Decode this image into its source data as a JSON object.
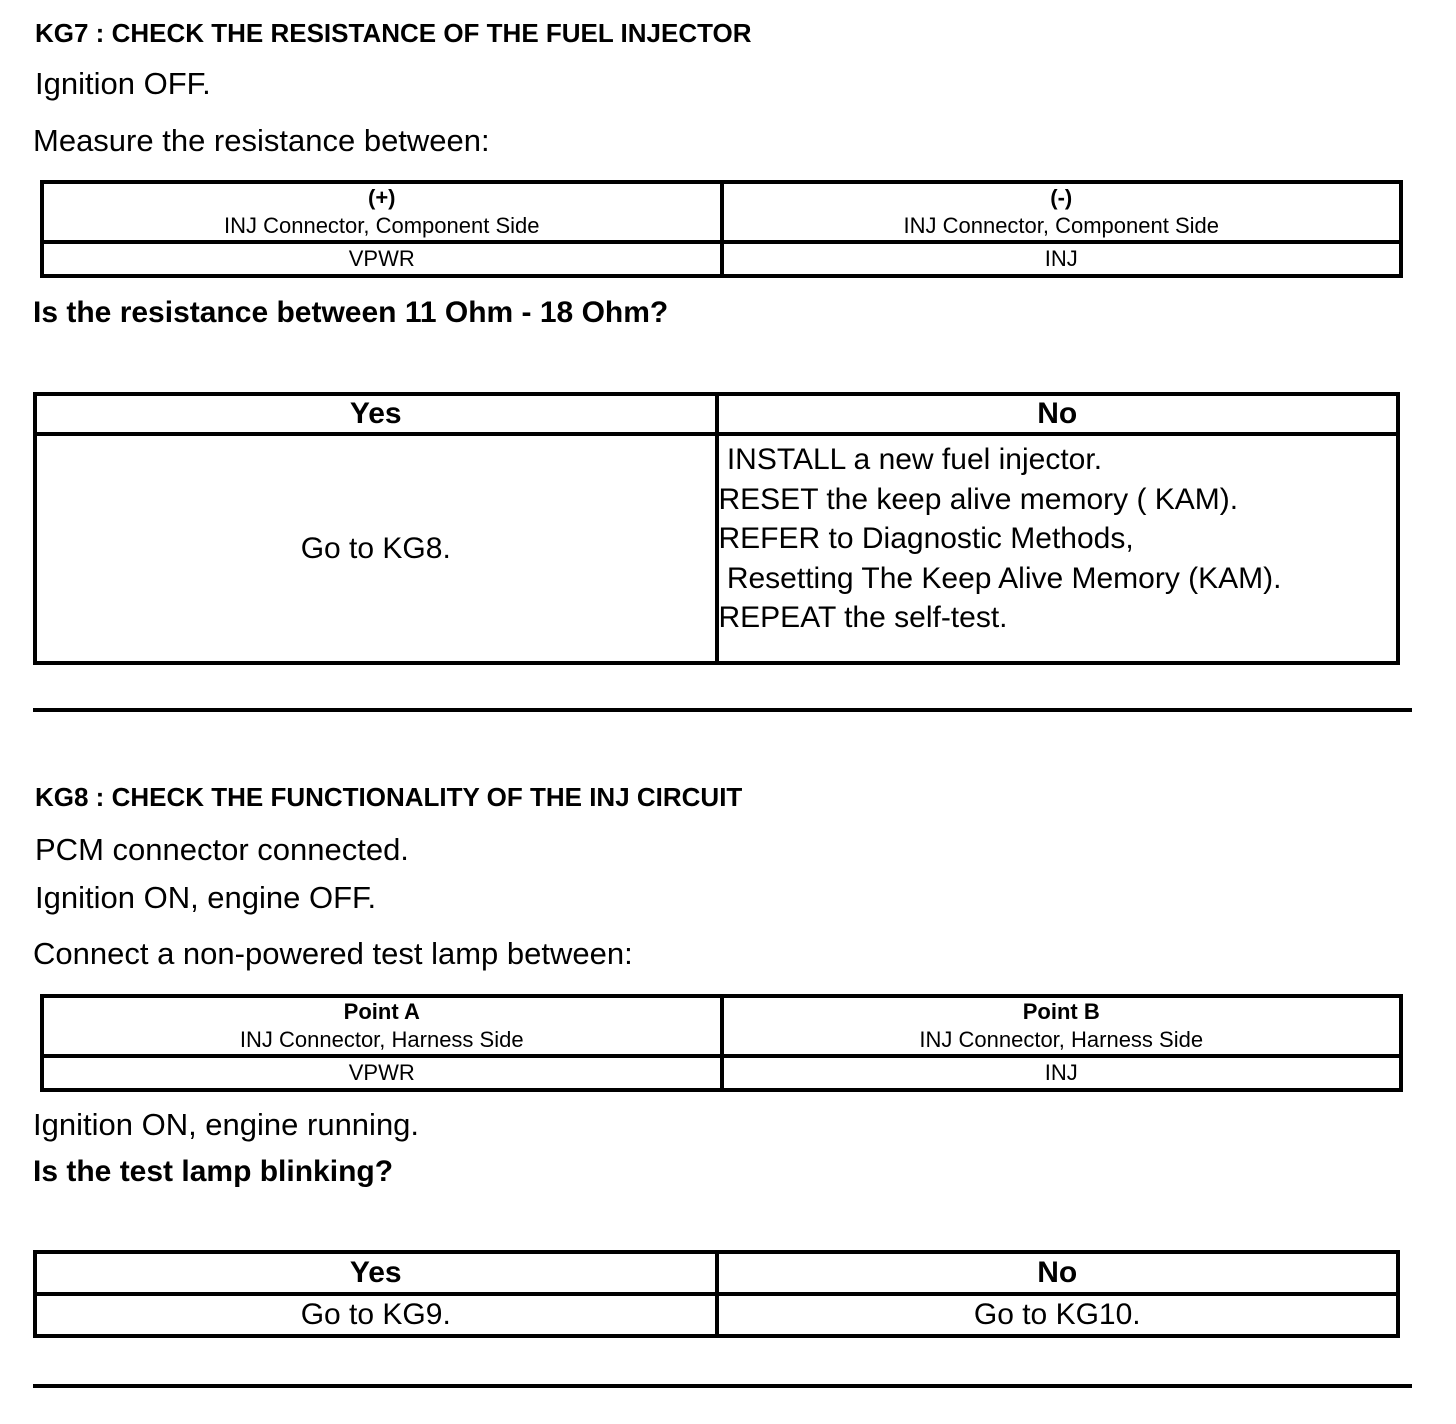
{
  "kg7": {
    "heading": "KG7 : CHECK THE RESISTANCE OF THE FUEL INJECTOR",
    "steps": [
      "Ignition OFF.",
      "Measure the resistance between:"
    ],
    "measure_table": {
      "col1_title": "(+)",
      "col1_sub": "INJ Connector, Component Side",
      "col2_title": "(-)",
      "col2_sub": "INJ Connector, Component Side",
      "col1_value": "VPWR",
      "col2_value": "INJ"
    },
    "question": "Is the resistance between 11 Ohm - 18 Ohm?",
    "result_table": {
      "yes_header": "Yes",
      "no_header": "No",
      "yes_action": "Go to KG8.",
      "no_actions": [
        " INSTALL a new fuel injector.",
        "RESET the keep alive memory ( KAM).",
        "REFER to Diagnostic Methods,",
        " Resetting The Keep Alive Memory (KAM).",
        "REPEAT the self-test."
      ]
    }
  },
  "kg8": {
    "heading": "KG8 : CHECK THE FUNCTIONALITY OF THE INJ CIRCUIT",
    "steps": [
      "PCM connector connected.",
      "Ignition ON, engine OFF.",
      "Connect a non-powered test lamp between:"
    ],
    "lamp_table": {
      "col1_title": "Point A",
      "col1_sub": "INJ Connector, Harness Side",
      "col2_title": "Point B",
      "col2_sub": "INJ Connector, Harness Side",
      "col1_value": "VPWR",
      "col2_value": "INJ"
    },
    "step_after": "Ignition ON, engine running.",
    "question": "Is the test lamp blinking?",
    "result_table": {
      "yes_header": "Yes",
      "no_header": "No",
      "yes_action": "Go to KG9.",
      "no_action": "Go to KG10."
    }
  }
}
